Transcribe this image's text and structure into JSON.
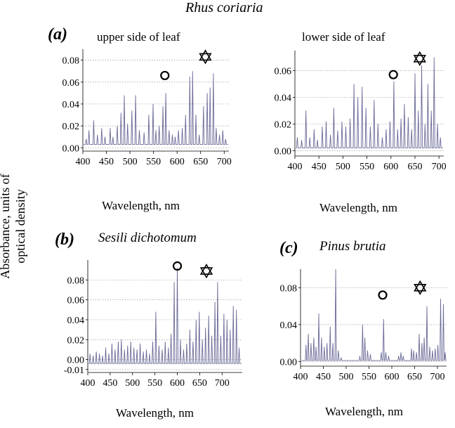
{
  "figure": {
    "title": "Rhus coriaria",
    "ylabel_line1": "Absorbance, units of",
    "ylabel_line2": "optical density"
  },
  "chart_data": [
    {
      "id": "a1",
      "type": "line",
      "panel_letter": "(a)",
      "title": "upper side of leaf",
      "xlabel": "Wavelength, nm",
      "ylabel": "Absorbance, units of optical density",
      "xlim": [
        400,
        710
      ],
      "ylim": [
        -0.003,
        0.09
      ],
      "xticks": [
        400,
        450,
        500,
        550,
        600,
        650,
        700
      ],
      "yticks": [
        0.0,
        0.02,
        0.04,
        0.06,
        0.08
      ],
      "ytick_labels": [
        "0.00",
        "0.02",
        "0.04",
        "0.06",
        "0.08"
      ],
      "baseline": 0.003,
      "peaks": [
        [
          407,
          0.008
        ],
        [
          413,
          0.016
        ],
        [
          423,
          0.025
        ],
        [
          431,
          0.012
        ],
        [
          440,
          0.018
        ],
        [
          447,
          0.01
        ],
        [
          458,
          0.018
        ],
        [
          464,
          0.01
        ],
        [
          473,
          0.02
        ],
        [
          481,
          0.032
        ],
        [
          488,
          0.048
        ],
        [
          495,
          0.022
        ],
        [
          504,
          0.034
        ],
        [
          512,
          0.048
        ],
        [
          520,
          0.016
        ],
        [
          530,
          0.014
        ],
        [
          540,
          0.03
        ],
        [
          549,
          0.04
        ],
        [
          555,
          0.016
        ],
        [
          562,
          0.02
        ],
        [
          570,
          0.038
        ],
        [
          576,
          0.05
        ],
        [
          583,
          0.016
        ],
        [
          590,
          0.012
        ],
        [
          596,
          0.01
        ],
        [
          603,
          0.016
        ],
        [
          611,
          0.018
        ],
        [
          618,
          0.03
        ],
        [
          627,
          0.065
        ],
        [
          633,
          0.07
        ],
        [
          640,
          0.03
        ],
        [
          647,
          0.012
        ],
        [
          656,
          0.038
        ],
        [
          664,
          0.05
        ],
        [
          670,
          0.055
        ],
        [
          677,
          0.068
        ],
        [
          683,
          0.018
        ],
        [
          690,
          0.012
        ],
        [
          697,
          0.016
        ],
        [
          703,
          0.008
        ]
      ],
      "markers": [
        {
          "symbol": "circle",
          "x": 574,
          "y": 0.066
        },
        {
          "symbol": "star",
          "x": 660,
          "y": 0.083
        }
      ]
    },
    {
      "id": "a2",
      "type": "line",
      "panel_letter": "",
      "title": "lower side of leaf",
      "xlabel": "Wavelength, nm",
      "ylabel": "Absorbance, units of optical density",
      "xlim": [
        400,
        710
      ],
      "ylim": [
        -0.004,
        0.075
      ],
      "xticks": [
        400,
        450,
        500,
        550,
        600,
        650,
        700
      ],
      "yticks": [
        0.0,
        0.02,
        0.04,
        0.06
      ],
      "ytick_labels": [
        "0.00",
        "0.02",
        "0.04",
        "0.06"
      ],
      "baseline": 0.002,
      "peaks": [
        [
          405,
          0.01
        ],
        [
          414,
          0.008
        ],
        [
          423,
          0.03
        ],
        [
          431,
          0.01
        ],
        [
          440,
          0.016
        ],
        [
          447,
          0.008
        ],
        [
          457,
          0.018
        ],
        [
          465,
          0.022
        ],
        [
          474,
          0.012
        ],
        [
          481,
          0.032
        ],
        [
          489,
          0.015
        ],
        [
          498,
          0.022
        ],
        [
          506,
          0.018
        ],
        [
          515,
          0.024
        ],
        [
          523,
          0.05
        ],
        [
          531,
          0.04
        ],
        [
          540,
          0.048
        ],
        [
          548,
          0.032
        ],
        [
          557,
          0.018
        ],
        [
          565,
          0.038
        ],
        [
          573,
          0.02
        ],
        [
          582,
          0.01
        ],
        [
          590,
          0.016
        ],
        [
          598,
          0.022
        ],
        [
          606,
          0.052
        ],
        [
          614,
          0.016
        ],
        [
          621,
          0.024
        ],
        [
          628,
          0.035
        ],
        [
          636,
          0.025
        ],
        [
          643,
          0.016
        ],
        [
          650,
          0.058
        ],
        [
          657,
          0.03
        ],
        [
          664,
          0.064
        ],
        [
          671,
          0.02
        ],
        [
          677,
          0.05
        ],
        [
          684,
          0.03
        ],
        [
          690,
          0.07
        ],
        [
          697,
          0.02
        ],
        [
          703,
          0.01
        ]
      ],
      "markers": [
        {
          "symbol": "circle",
          "x": 605,
          "y": 0.057
        },
        {
          "symbol": "star",
          "x": 660,
          "y": 0.069
        }
      ]
    },
    {
      "id": "b",
      "type": "line",
      "panel_letter": "(b)",
      "title": "Sesili dichotomum",
      "xlabel": "Wavelength, nm",
      "ylabel": "Absorbance, units of optical density",
      "xlim": [
        400,
        745
      ],
      "ylim": [
        -0.013,
        0.1
      ],
      "xticks": [
        400,
        450,
        500,
        550,
        600,
        650,
        700
      ],
      "yticks": [
        -0.01,
        0.0,
        0.02,
        0.04,
        0.06,
        0.08
      ],
      "ytick_labels": [
        "-0.01",
        "0.00",
        "0.02",
        "0.04",
        "0.06",
        "0.08"
      ],
      "baseline": -0.004,
      "peaks": [
        [
          405,
          0.006
        ],
        [
          412,
          0.004
        ],
        [
          419,
          0.008
        ],
        [
          426,
          0.006
        ],
        [
          433,
          0.004
        ],
        [
          440,
          0.012
        ],
        [
          447,
          0.006
        ],
        [
          454,
          0.016
        ],
        [
          461,
          0.01
        ],
        [
          468,
          0.018
        ],
        [
          475,
          0.02
        ],
        [
          482,
          0.01
        ],
        [
          489,
          0.014
        ],
        [
          496,
          0.018
        ],
        [
          503,
          0.012
        ],
        [
          510,
          0.01
        ],
        [
          517,
          0.016
        ],
        [
          524,
          0.008
        ],
        [
          531,
          0.01
        ],
        [
          538,
          0.006
        ],
        [
          545,
          0.018
        ],
        [
          552,
          0.048
        ],
        [
          559,
          0.014
        ],
        [
          566,
          0.01
        ],
        [
          573,
          0.018
        ],
        [
          580,
          0.012
        ],
        [
          586,
          0.026
        ],
        [
          593,
          0.078
        ],
        [
          600,
          0.092
        ],
        [
          607,
          0.02
        ],
        [
          614,
          0.01
        ],
        [
          621,
          0.016
        ],
        [
          628,
          0.03
        ],
        [
          635,
          0.018
        ],
        [
          642,
          0.04
        ],
        [
          649,
          0.048
        ],
        [
          656,
          0.02
        ],
        [
          663,
          0.032
        ],
        [
          670,
          0.044
        ],
        [
          677,
          0.024
        ],
        [
          684,
          0.058
        ],
        [
          690,
          0.078
        ],
        [
          697,
          0.024
        ],
        [
          704,
          0.046
        ],
        [
          711,
          0.04
        ],
        [
          718,
          0.03
        ],
        [
          725,
          0.054
        ],
        [
          732,
          0.05
        ],
        [
          738,
          0.012
        ]
      ],
      "markers": [
        {
          "symbol": "circle",
          "x": 600,
          "y": 0.094
        },
        {
          "symbol": "star",
          "x": 665,
          "y": 0.089
        }
      ]
    },
    {
      "id": "c",
      "type": "line",
      "panel_letter": "(c)",
      "title": "Pinus brutia",
      "xlabel": "Wavelength, nm",
      "ylabel": "Absorbance, units of optical density",
      "xlim": [
        400,
        720
      ],
      "ylim": [
        -0.005,
        0.1
      ],
      "xticks": [
        400,
        450,
        500,
        550,
        600,
        650,
        700
      ],
      "yticks": [
        0.0,
        0.04,
        0.08
      ],
      "ytick_labels": [
        "0.00",
        "0.04",
        "0.08"
      ],
      "baseline": 0.001,
      "peaks": [
        [
          412,
          0.018
        ],
        [
          417,
          0.03
        ],
        [
          423,
          0.02
        ],
        [
          429,
          0.026
        ],
        [
          434,
          0.016
        ],
        [
          440,
          0.052
        ],
        [
          446,
          0.026
        ],
        [
          452,
          0.016
        ],
        [
          458,
          0.02
        ],
        [
          465,
          0.038
        ],
        [
          471,
          0.02
        ],
        [
          477,
          0.1
        ],
        [
          483,
          0.012
        ],
        [
          489,
          0.004
        ],
        [
          530,
          0.006
        ],
        [
          536,
          0.04
        ],
        [
          541,
          0.026
        ],
        [
          547,
          0.012
        ],
        [
          553,
          0.008
        ],
        [
          577,
          0.01
        ],
        [
          582,
          0.046
        ],
        [
          587,
          0.01
        ],
        [
          593,
          0.006
        ],
        [
          615,
          0.006
        ],
        [
          620,
          0.01
        ],
        [
          625,
          0.006
        ],
        [
          643,
          0.014
        ],
        [
          648,
          0.012
        ],
        [
          654,
          0.01
        ],
        [
          660,
          0.03
        ],
        [
          666,
          0.02
        ],
        [
          671,
          0.026
        ],
        [
          677,
          0.06
        ],
        [
          683,
          0.016
        ],
        [
          689,
          0.012
        ],
        [
          695,
          0.014
        ],
        [
          701,
          0.018
        ],
        [
          707,
          0.068
        ],
        [
          713,
          0.062
        ],
        [
          717,
          0.01
        ]
      ],
      "markers": [
        {
          "symbol": "circle",
          "x": 580,
          "y": 0.072
        },
        {
          "symbol": "star",
          "x": 662,
          "y": 0.08
        }
      ]
    }
  ]
}
